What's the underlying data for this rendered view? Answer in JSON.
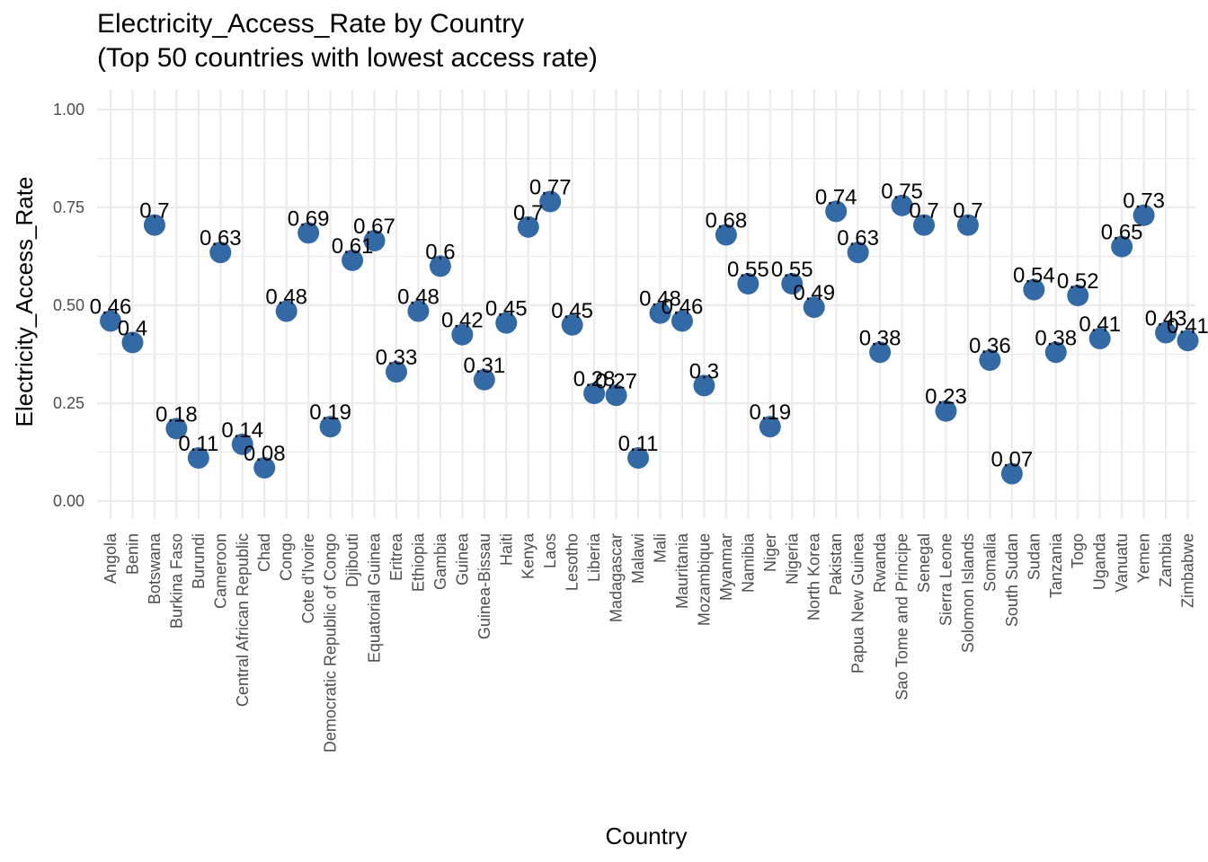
{
  "chart_data": {
    "type": "scatter",
    "title": "Electricity_Access_Rate by Country",
    "subtitle": "(Top 50 countries with lowest access rate)",
    "xlabel": "Country",
    "ylabel": "Electricity_Access_Rate",
    "ylim": [
      0,
      1
    ],
    "yticks": [
      "0.00",
      "0.25",
      "0.50",
      "0.75",
      "1.00"
    ],
    "grid": true,
    "point_color": "#336aa6",
    "categories": [
      "Angola",
      "Benin",
      "Botswana",
      "Burkina Faso",
      "Burundi",
      "Cameroon",
      "Central African Republic",
      "Chad",
      "Congo",
      "Cote d'Ivoire",
      "Democratic Republic of Congo",
      "Djibouti",
      "Equatorial Guinea",
      "Eritrea",
      "Ethiopia",
      "Gambia",
      "Guinea",
      "Guinea-Bissau",
      "Haiti",
      "Kenya",
      "Laos",
      "Lesotho",
      "Liberia",
      "Madagascar",
      "Malawi",
      "Mali",
      "Mauritania",
      "Mozambique",
      "Myanmar",
      "Namibia",
      "Niger",
      "Nigeria",
      "North Korea",
      "Pakistan",
      "Papua New Guinea",
      "Rwanda",
      "Sao Tome and Principe",
      "Senegal",
      "Sierra Leone",
      "Solomon Islands",
      "Somalia",
      "South Sudan",
      "Sudan",
      "Tanzania",
      "Togo",
      "Uganda",
      "Vanuatu",
      "Yemen",
      "Zambia",
      "Zimbabwe"
    ],
    "values": [
      0.46,
      0.405,
      0.705,
      0.185,
      0.11,
      0.635,
      0.145,
      0.085,
      0.485,
      0.685,
      0.19,
      0.615,
      0.665,
      0.33,
      0.485,
      0.6,
      0.425,
      0.31,
      0.455,
      0.7,
      0.765,
      0.45,
      0.275,
      0.27,
      0.11,
      0.48,
      0.46,
      0.295,
      0.68,
      0.555,
      0.19,
      0.555,
      0.495,
      0.74,
      0.635,
      0.38,
      0.755,
      0.705,
      0.23,
      0.705,
      0.36,
      0.07,
      0.54,
      0.38,
      0.525,
      0.415,
      0.65,
      0.73,
      0.43,
      0.41
    ],
    "labels": [
      "0.46",
      "0.4",
      "0.7",
      "0.18",
      "0.11",
      "0.63",
      "0.14",
      "0.08",
      "0.48",
      "0.69",
      "0.19",
      "0.61",
      "0.67",
      "0.33",
      "0.48",
      "0.6",
      "0.42",
      "0.31",
      "0.45",
      "0.7",
      "0.77",
      "0.45",
      "0.28",
      "0.27",
      "0.11",
      "0.48",
      "0.46",
      "0.3",
      "0.68",
      "0.55",
      "0.19",
      "0.55",
      "0.49",
      "0.74",
      "0.63",
      "0.38",
      "0.75",
      "0.7",
      "0.23",
      "0.7",
      "0.36",
      "0.07",
      "0.54",
      "0.38",
      "0.52",
      "0.41",
      "0.65",
      "0.73",
      "0.43",
      "0.41"
    ]
  }
}
